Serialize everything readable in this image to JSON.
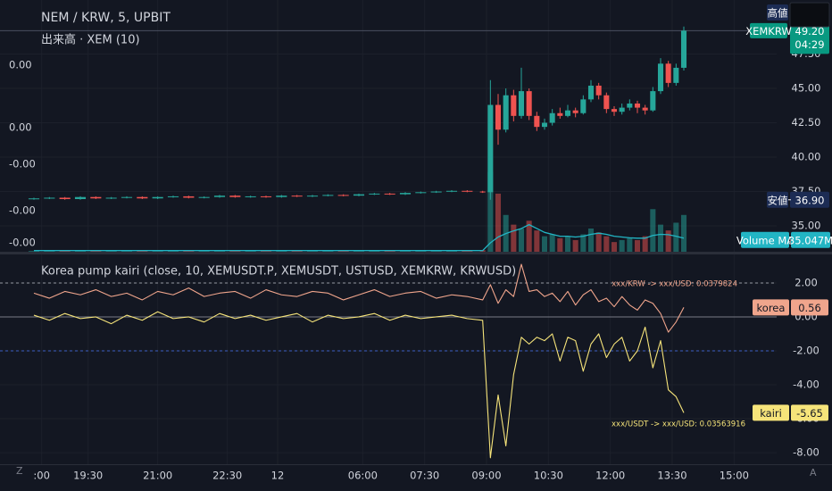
{
  "chart_data": [
    {
      "type": "candlestick",
      "title": "NEM / KRW, 5, UPBIT",
      "subtitle": "出来高 · XEM (10)",
      "xlim": [
        0,
        192
      ],
      "x": [
        0,
        4,
        8,
        12,
        16,
        20,
        24,
        28,
        32,
        36,
        40,
        44,
        48,
        52,
        56,
        60,
        64,
        68,
        72,
        76,
        80,
        84,
        88,
        92,
        96,
        100,
        104,
        108,
        112,
        116,
        118,
        120,
        122,
        124,
        126,
        128,
        130,
        132,
        134,
        136,
        138,
        140,
        142,
        144,
        146,
        148,
        150,
        152,
        154,
        156,
        158,
        160,
        162,
        164,
        166,
        168
      ],
      "open": [
        36.95,
        37.0,
        37.05,
        36.95,
        37.1,
        37.0,
        37.05,
        37.1,
        37.0,
        37.1,
        37.15,
        37.05,
        37.1,
        37.2,
        37.1,
        37.15,
        37.1,
        37.2,
        37.15,
        37.2,
        37.25,
        37.2,
        37.3,
        37.35,
        37.3,
        37.4,
        37.45,
        37.5,
        37.55,
        37.5,
        37.45,
        43.8,
        42.0,
        44.5,
        43.0,
        44.8,
        43.0,
        42.2,
        42.5,
        43.2,
        43.0,
        43.4,
        43.2,
        44.2,
        45.2,
        44.5,
        43.5,
        43.3,
        43.6,
        43.9,
        43.6,
        43.4,
        44.8,
        46.8,
        45.4,
        46.5
      ],
      "high": [
        37.05,
        37.1,
        37.1,
        37.15,
        37.15,
        37.1,
        37.15,
        37.15,
        37.15,
        37.2,
        37.2,
        37.15,
        37.25,
        37.25,
        37.2,
        37.2,
        37.25,
        37.25,
        37.25,
        37.3,
        37.3,
        37.35,
        37.4,
        37.4,
        37.45,
        37.5,
        37.55,
        37.6,
        37.6,
        37.55,
        45.6,
        44.6,
        45.0,
        44.9,
        46.5,
        45.0,
        43.3,
        42.8,
        43.5,
        43.6,
        43.8,
        43.6,
        44.5,
        45.6,
        45.4,
        44.7,
        43.7,
        43.9,
        44.2,
        44.1,
        43.8,
        45.1,
        47.2,
        47.0,
        46.8,
        49.5
      ],
      "low": [
        36.9,
        36.95,
        36.9,
        36.9,
        36.95,
        36.95,
        37.0,
        36.95,
        36.95,
        37.05,
        37.0,
        37.0,
        37.05,
        37.05,
        37.05,
        37.05,
        37.05,
        37.1,
        37.1,
        37.15,
        37.15,
        37.15,
        37.25,
        37.25,
        37.25,
        37.35,
        37.4,
        37.45,
        37.45,
        37.4,
        36.9,
        40.9,
        41.8,
        42.6,
        42.8,
        42.7,
        41.9,
        42.0,
        42.3,
        42.8,
        42.9,
        42.9,
        43.1,
        44.0,
        44.2,
        43.2,
        43.0,
        43.1,
        43.4,
        43.2,
        43.1,
        43.3,
        44.6,
        45.1,
        45.2,
        46.3
      ],
      "close": [
        37.0,
        37.05,
        36.95,
        37.1,
        37.0,
        37.05,
        37.1,
        37.0,
        37.1,
        37.15,
        37.05,
        37.1,
        37.2,
        37.1,
        37.15,
        37.1,
        37.2,
        37.15,
        37.2,
        37.25,
        37.2,
        37.3,
        37.35,
        37.3,
        37.4,
        37.45,
        37.5,
        37.55,
        37.5,
        37.45,
        43.8,
        42.0,
        44.5,
        43.0,
        44.8,
        43.0,
        42.2,
        42.5,
        43.2,
        43.0,
        43.4,
        43.2,
        44.2,
        45.2,
        44.5,
        43.5,
        43.3,
        43.6,
        43.9,
        43.6,
        43.4,
        44.8,
        46.8,
        45.4,
        46.5,
        49.2
      ],
      "color_up": "#26a69a",
      "color_down": "#ef5350",
      "ylim": [
        33.12,
        51.43
      ],
      "yticks": [
        {
          "value": 35,
          "label": "35.00"
        },
        {
          "value": 37.5,
          "label": "37.50"
        },
        {
          "value": 40,
          "label": "40.00"
        },
        {
          "value": 42.5,
          "label": "42.50"
        },
        {
          "value": 45,
          "label": "45.00"
        },
        {
          "value": 47.5,
          "label": "47.50"
        }
      ],
      "grid": true,
      "high_label": {
        "name": "高値"
      },
      "low_label": {
        "name": "安値",
        "value": 36.9,
        "label": "36.90"
      },
      "last_price": {
        "name": "XEMKRW",
        "value": 49.2,
        "label": "49.20",
        "countdown": "04:29",
        "color": "#089981"
      },
      "volume": {
        "ylim": [
          0,
          650
        ],
        "axis_labels": [
          "0.00",
          "0.00",
          "-0.00",
          "-0.00",
          "-0.00"
        ],
        "values": [
          2,
          3,
          2,
          4,
          2,
          3,
          2,
          3,
          2,
          4,
          3,
          2,
          3,
          2,
          3,
          2,
          4,
          3,
          2,
          3,
          3,
          4,
          3,
          3,
          4,
          3,
          4,
          3,
          3,
          4,
          206,
          150,
          95,
          70,
          60,
          80,
          55,
          40,
          45,
          35,
          40,
          30,
          45,
          60,
          50,
          40,
          25,
          30,
          35,
          30,
          40,
          110,
          70,
          55,
          75,
          95
        ],
        "ma": {
          "name": "Volume MA",
          "color": "#22b5c4",
          "values": [
            3,
            3,
            3,
            3,
            3,
            3,
            3,
            3,
            3,
            3,
            3,
            3,
            3,
            3,
            3,
            3,
            3,
            3,
            3,
            3,
            3,
            3,
            3,
            3,
            3,
            3,
            3,
            3,
            3,
            3,
            23,
            38,
            47,
            54,
            60,
            70,
            60,
            50,
            45,
            40,
            40,
            38,
            40,
            45,
            48,
            45,
            40,
            38,
            36,
            35,
            35,
            42,
            45,
            44,
            40,
            35.047
          ],
          "last_label": "35.047M"
        }
      }
    },
    {
      "type": "line",
      "title": "Korea pump kairi (close, 10, XEMUSDT.P, XEMUSDT, USTUSD, XEMKRW, KRWUSD)",
      "xlim": [
        0,
        192
      ],
      "x": [
        0,
        4,
        8,
        12,
        16,
        20,
        24,
        28,
        32,
        36,
        40,
        44,
        48,
        52,
        56,
        60,
        64,
        68,
        72,
        76,
        80,
        84,
        88,
        92,
        96,
        100,
        104,
        108,
        112,
        116,
        118,
        120,
        122,
        124,
        126,
        128,
        130,
        132,
        134,
        136,
        138,
        140,
        142,
        144,
        146,
        148,
        150,
        152,
        154,
        156,
        158,
        160,
        162,
        164,
        166,
        168
      ],
      "xticks": [
        {
          "value": 2,
          "label": ":00"
        },
        {
          "value": 14,
          "label": "19:30"
        },
        {
          "value": 32,
          "label": "21:00"
        },
        {
          "value": 50,
          "label": "22:30"
        },
        {
          "value": 63,
          "label": "12"
        },
        {
          "value": 85,
          "label": "06:00"
        },
        {
          "value": 101,
          "label": "07:30"
        },
        {
          "value": 117,
          "label": "09:00"
        },
        {
          "value": 133,
          "label": "10:30"
        },
        {
          "value": 149,
          "label": "12:00"
        },
        {
          "value": 165,
          "label": "13:30"
        },
        {
          "value": 181,
          "label": "15:00"
        }
      ],
      "ylim": [
        -8.68,
        3.68
      ],
      "yticks": [
        {
          "value": 2,
          "label": "2.00"
        },
        {
          "value": 0,
          "label": "0.00"
        },
        {
          "value": -2,
          "label": "-2.00"
        },
        {
          "value": -4,
          "label": "-4.00"
        },
        {
          "value": -6,
          "label": "-6.00"
        },
        {
          "value": -8,
          "label": "-8.00"
        }
      ],
      "grid": true,
      "levels": [
        2,
        0,
        -2
      ],
      "level_colors": [
        "#9598a1",
        "#787b86",
        "#3d5fc4"
      ],
      "level_styles": [
        "dashed",
        "solid",
        "dashed"
      ],
      "series": [
        {
          "name": "korea",
          "color": "#f0a58c",
          "values": [
            1.4,
            1.1,
            1.5,
            1.3,
            1.6,
            1.2,
            1.4,
            1.0,
            1.5,
            1.3,
            1.7,
            1.2,
            1.4,
            1.5,
            1.1,
            1.6,
            1.3,
            1.2,
            1.5,
            1.4,
            1.0,
            1.3,
            1.6,
            1.2,
            1.4,
            1.5,
            1.1,
            1.3,
            1.2,
            1.0,
            1.9,
            0.8,
            1.6,
            1.2,
            3.1,
            1.5,
            1.6,
            1.2,
            1.4,
            0.9,
            1.5,
            0.7,
            1.3,
            1.6,
            0.9,
            1.1,
            0.6,
            1.2,
            0.7,
            0.4,
            1.0,
            0.8,
            0.2,
            -0.9,
            -0.3,
            0.56
          ]
        },
        {
          "name": "kairi",
          "color": "#f6e47a",
          "values": [
            0.1,
            -0.2,
            0.2,
            -0.1,
            0.0,
            -0.4,
            0.1,
            -0.2,
            0.3,
            -0.1,
            0.0,
            -0.3,
            0.2,
            -0.1,
            0.1,
            -0.2,
            0.0,
            0.2,
            -0.3,
            0.1,
            -0.1,
            0.0,
            0.2,
            -0.2,
            0.1,
            -0.1,
            0.0,
            0.1,
            -0.1,
            -0.2,
            -8.3,
            -4.6,
            -7.6,
            -3.4,
            -1.2,
            -1.6,
            -1.2,
            -1.4,
            -1.0,
            -2.6,
            -1.2,
            -1.4,
            -3.2,
            -1.6,
            -1.0,
            -2.4,
            -1.6,
            -1.2,
            -2.6,
            -2.0,
            -0.6,
            -3.0,
            -1.4,
            -4.3,
            -4.7,
            -5.65
          ]
        }
      ],
      "annotations": [
        {
          "text": "xxx/KRW -> xxx/USD: 0.0379824",
          "color": "#f0a58c"
        },
        {
          "text": "xxx/USDT -> xxx/USD: 0.03563916",
          "color": "#f6e47a"
        }
      ]
    }
  ]
}
